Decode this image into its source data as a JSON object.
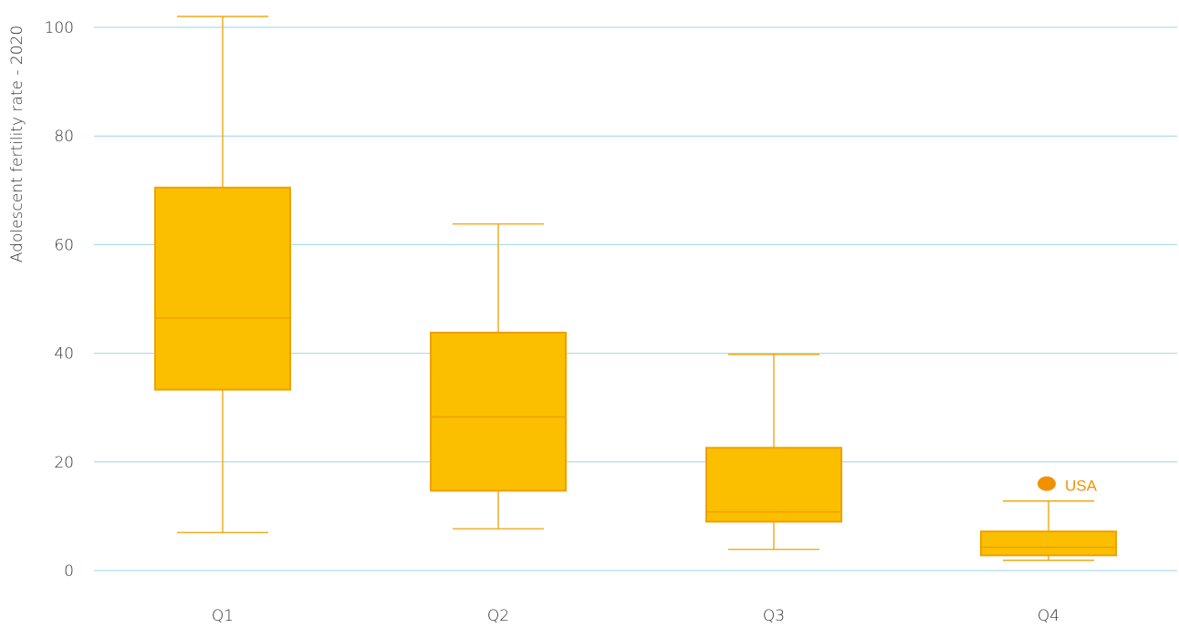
{
  "chart_data": {
    "type": "box",
    "title": "",
    "xlabel": "",
    "ylabel": "Adolescent fertility rate - 2020",
    "ylim": [
      0,
      100
    ],
    "yticks": [
      0,
      20,
      40,
      60,
      80,
      100
    ],
    "grid": true,
    "categories": [
      "Q1",
      "Q2",
      "Q3",
      "Q4"
    ],
    "boxes": [
      {
        "category": "Q1",
        "min": 7,
        "q1": 33.3,
        "median": 46.5,
        "q3": 70.5,
        "max": 102
      },
      {
        "category": "Q2",
        "min": 7.7,
        "q1": 14.7,
        "median": 28.3,
        "q3": 43.8,
        "max": 63.8
      },
      {
        "category": "Q3",
        "min": 3.9,
        "q1": 9,
        "median": 10.8,
        "q3": 22.6,
        "max": 39.8
      },
      {
        "category": "Q4",
        "min": 1.9,
        "q1": 2.8,
        "median": 4.3,
        "q3": 7.2,
        "max": 12.8
      }
    ],
    "outliers": [
      {
        "category": "Q4",
        "value": 16,
        "label": "USA"
      }
    ]
  },
  "colors": {
    "box_fill": "#fbbf00",
    "box_stroke": "#f0a000",
    "whisker": "#f0a000",
    "outlier": "#f29100",
    "grid": "#9bd6e4",
    "text": "#333333"
  }
}
